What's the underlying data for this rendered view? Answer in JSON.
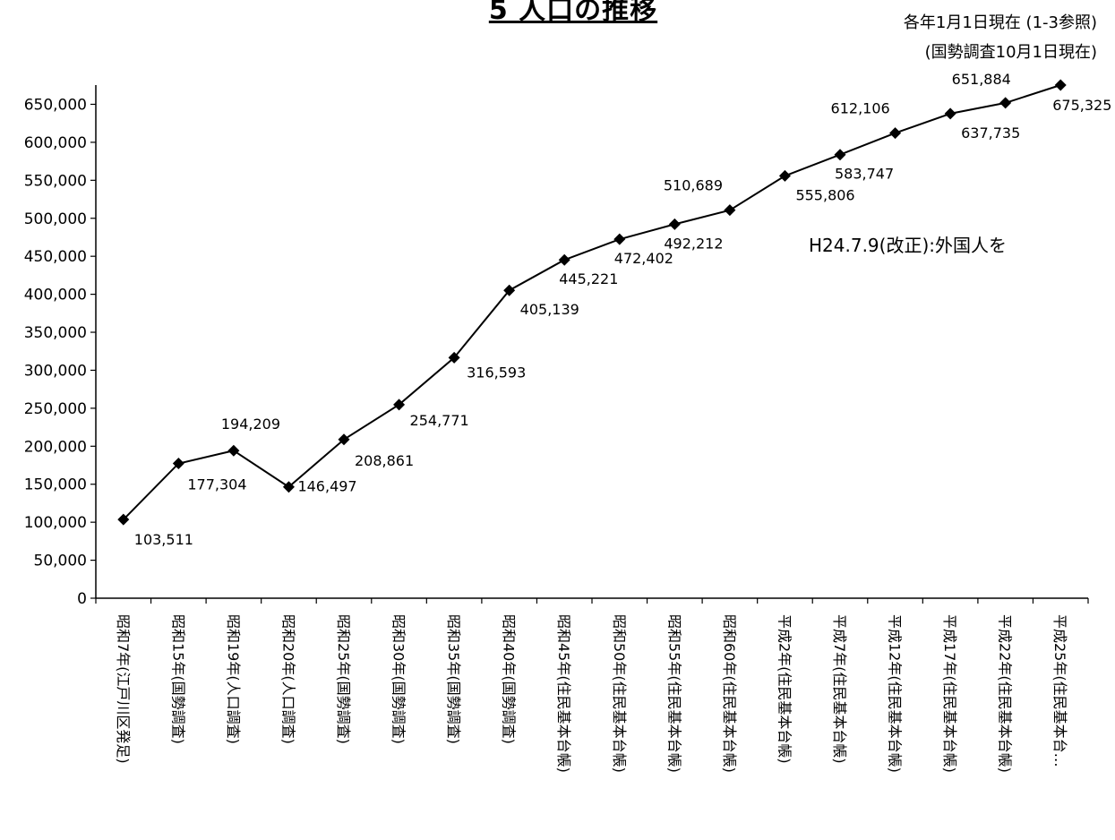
{
  "title": "5 人口の推移",
  "notes": [
    "各年1月1日現在 (1-3参照)",
    "(国勢調査10月1日現在)"
  ],
  "annotation": "H24.7.9(改正):外国人を",
  "chart_data": {
    "type": "line",
    "title": "5 人口の推移",
    "xlabel": "",
    "ylabel": "",
    "ylim": [
      0,
      675325
    ],
    "yticks": [
      0,
      50000,
      100000,
      150000,
      200000,
      250000,
      300000,
      350000,
      400000,
      450000,
      500000,
      550000,
      600000,
      650000
    ],
    "ytick_labels": [
      "0",
      "50,000",
      "100,000",
      "150,000",
      "200,000",
      "250,000",
      "300,000",
      "350,000",
      "400,000",
      "450,000",
      "500,000",
      "550,000",
      "600,000",
      "650,000"
    ],
    "grid": false,
    "legend": "none",
    "line_color": "#000000",
    "categories": [
      "昭和7年(江戸川区発足)",
      "昭和15年(国勢調査)",
      "昭和19年(人口調査)",
      "昭和20年(人口調査)",
      "昭和25年(国勢調査)",
      "昭和30年(国勢調査)",
      "昭和35年(国勢調査)",
      "昭和40年(国勢調査)",
      "昭和45年(住民基本台帳)",
      "昭和50年(住民基本台帳)",
      "昭和55年(住民基本台帳)",
      "昭和60年(住民基本台帳)",
      "平成2年(住民基本台帳)",
      "平成7年(住民基本台帳)",
      "平成12年(住民基本台帳)",
      "平成17年(住民基本台帳)",
      "平成22年(住民基本台帳)",
      "平成25年(住民基本台…"
    ],
    "values": [
      103511,
      177304,
      194209,
      146497,
      208861,
      254771,
      316593,
      405139,
      445221,
      472402,
      492212,
      510689,
      555806,
      583747,
      612106,
      637735,
      651884,
      675325
    ],
    "value_labels": [
      "103,511",
      "177,304",
      "194,209",
      "146,497",
      "208,861",
      "254,771",
      "316,593",
      "405,139",
      "445,221",
      "472,402",
      "492,212",
      "510,689",
      "555,806",
      "583,747",
      "612,106",
      "637,735",
      "651,884",
      "675,325"
    ]
  }
}
